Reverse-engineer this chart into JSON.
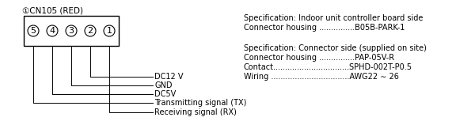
{
  "title": "①CN105 (RED)",
  "connector_pins": [
    "5",
    "4",
    "3",
    "2",
    "1"
  ],
  "pin_labels": [
    "DC12 V",
    "GND",
    "DC5V",
    "Transmitting signal (TX)",
    "Receiving signal (RX)"
  ],
  "spec1_line1": "Specification: Indoor unit controller board side",
  "spec1_line2": "Connector housing ...............B05B-PARK-1",
  "spec2_line1": "Specification: Connector side (supplied on site)",
  "spec2_line2": "Connector housing ...............PAP-05V-R",
  "spec2_line3": "Contact................................SPHD-002T-P0.5",
  "spec2_line4": "Wiring .................................AWG22 ∼ 26",
  "bg_color": "#ffffff",
  "fg_color": "#000000",
  "font_size": 7.0,
  "title_font_size": 7.5
}
